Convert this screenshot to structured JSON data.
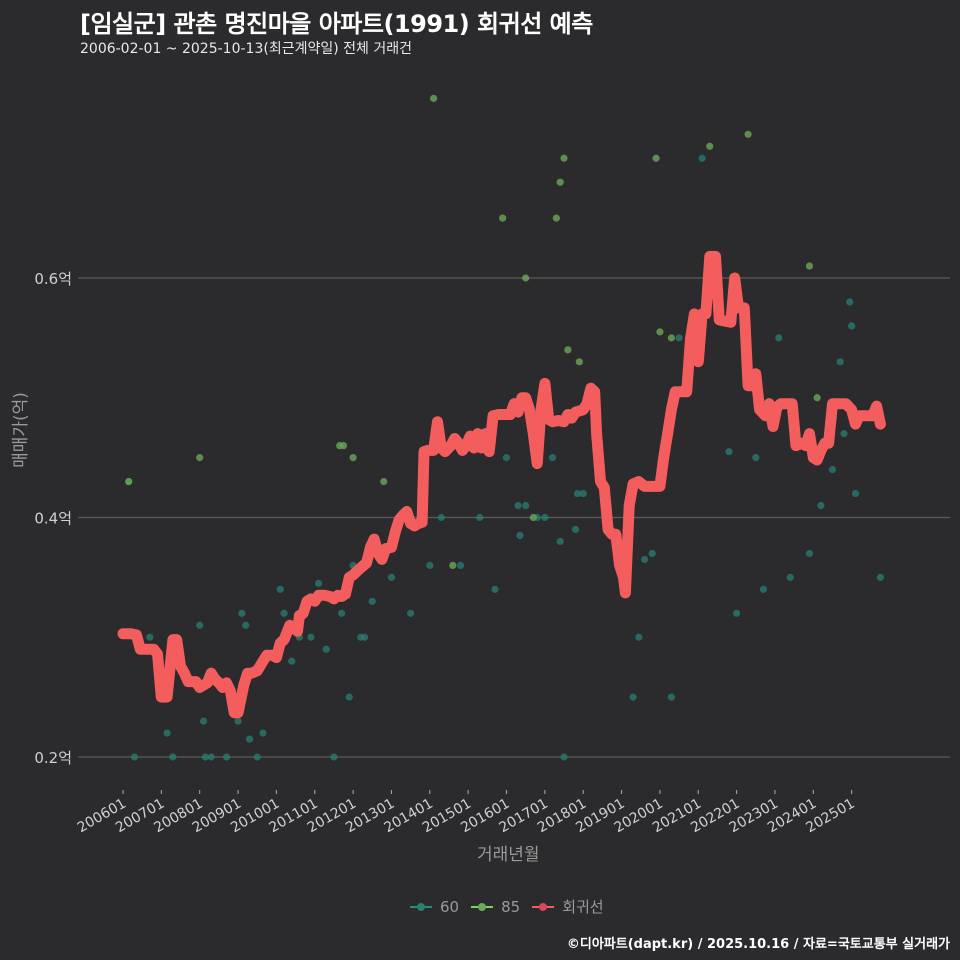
{
  "header": {
    "title": "[임실군] 관촌 명진마을 아파트(1991) 회귀선 예측",
    "subtitle": "2006-02-01 ~ 2025-10-13(최근계약일) 전체 거래건"
  },
  "axes": {
    "ylabel": "매매가(억)",
    "xlabel": "거래년월"
  },
  "legend": [
    {
      "label": "60",
      "color": "#2a8a7e"
    },
    {
      "label": "85",
      "color": "#7ccf6a"
    },
    {
      "label": "회귀선",
      "color": "#f45d5d"
    }
  ],
  "footer": "©디아파트(dapt.kr) / 2025.10.16 / 자료=국토교통부 실거래가",
  "colors": {
    "background": "#2b2a2c",
    "grid": "#5c5c5c",
    "regression": "#f45d5d",
    "size60": "#2a7f73",
    "size85": "#6aa85a"
  },
  "chart_data": {
    "type": "scatter",
    "title": "[임실군] 관촌 명진마을 아파트(1991) 회귀선 예측",
    "subtitle": "2006-02-01 ~ 2025-10-13(최근계약일) 전체 거래건",
    "xlabel": "거래년월",
    "ylabel": "매매가(억)",
    "x_tick_labels": [
      "200601",
      "200701",
      "200801",
      "200901",
      "201001",
      "201101",
      "201201",
      "201301",
      "201401",
      "201501",
      "201601",
      "201701",
      "201801",
      "201901",
      "202001",
      "202101",
      "202201",
      "202301",
      "202401",
      "202501"
    ],
    "y_tick_labels": [
      "0.2억",
      "0.4억",
      "0.6억"
    ],
    "y_ticks": [
      0.2,
      0.4,
      0.6
    ],
    "ylim": [
      0.17,
      0.77
    ],
    "xlim": [
      2005.9,
      2026.0
    ],
    "grid": true,
    "legend_position": "bottom",
    "series": [
      {
        "name": "60",
        "type": "scatter",
        "points": [
          [
            2006.15,
            0.43
          ],
          [
            2006.3,
            0.2
          ],
          [
            2006.7,
            0.3
          ],
          [
            2007.15,
            0.22
          ],
          [
            2007.3,
            0.2
          ],
          [
            2008.0,
            0.31
          ],
          [
            2008.1,
            0.23
          ],
          [
            2008.15,
            0.2
          ],
          [
            2008.3,
            0.2
          ],
          [
            2008.7,
            0.2
          ],
          [
            2009.0,
            0.23
          ],
          [
            2009.1,
            0.32
          ],
          [
            2009.2,
            0.31
          ],
          [
            2009.3,
            0.215
          ],
          [
            2009.5,
            0.2
          ],
          [
            2009.65,
            0.22
          ],
          [
            2010.1,
            0.34
          ],
          [
            2010.2,
            0.32
          ],
          [
            2010.4,
            0.28
          ],
          [
            2010.6,
            0.3
          ],
          [
            2010.9,
            0.3
          ],
          [
            2011.1,
            0.345
          ],
          [
            2011.3,
            0.29
          ],
          [
            2011.5,
            0.2
          ],
          [
            2011.7,
            0.32
          ],
          [
            2011.9,
            0.25
          ],
          [
            2012.0,
            0.36
          ],
          [
            2012.2,
            0.3
          ],
          [
            2012.3,
            0.3
          ],
          [
            2012.5,
            0.33
          ],
          [
            2012.8,
            0.37
          ],
          [
            2013.0,
            0.35
          ],
          [
            2013.3,
            0.4
          ],
          [
            2013.5,
            0.32
          ],
          [
            2014.0,
            0.36
          ],
          [
            2014.3,
            0.4
          ],
          [
            2014.8,
            0.36
          ],
          [
            2015.3,
            0.4
          ],
          [
            2015.7,
            0.34
          ],
          [
            2016.0,
            0.45
          ],
          [
            2016.3,
            0.41
          ],
          [
            2016.35,
            0.385
          ],
          [
            2016.5,
            0.41
          ],
          [
            2016.8,
            0.4
          ],
          [
            2017.0,
            0.4
          ],
          [
            2017.2,
            0.45
          ],
          [
            2017.4,
            0.38
          ],
          [
            2017.5,
            0.2
          ],
          [
            2017.8,
            0.39
          ],
          [
            2017.85,
            0.42
          ],
          [
            2018.0,
            0.42
          ],
          [
            2019.3,
            0.25
          ],
          [
            2019.45,
            0.3
          ],
          [
            2019.6,
            0.365
          ],
          [
            2019.8,
            0.37
          ],
          [
            2020.3,
            0.25
          ],
          [
            2020.5,
            0.55
          ],
          [
            2021.1,
            0.7
          ],
          [
            2021.8,
            0.455
          ],
          [
            2022.0,
            0.32
          ],
          [
            2022.2,
            0.55
          ],
          [
            2022.5,
            0.45
          ],
          [
            2022.7,
            0.34
          ],
          [
            2023.1,
            0.55
          ],
          [
            2023.4,
            0.35
          ],
          [
            2023.9,
            0.37
          ],
          [
            2024.2,
            0.41
          ],
          [
            2024.5,
            0.44
          ],
          [
            2024.7,
            0.53
          ],
          [
            2024.8,
            0.47
          ],
          [
            2024.95,
            0.58
          ],
          [
            2025.0,
            0.56
          ],
          [
            2025.1,
            0.42
          ],
          [
            2025.75,
            0.35
          ]
        ]
      },
      {
        "name": "85",
        "type": "scatter",
        "points": [
          [
            2006.15,
            0.43
          ],
          [
            2008.0,
            0.45
          ],
          [
            2011.65,
            0.46
          ],
          [
            2011.75,
            0.46
          ],
          [
            2012.0,
            0.45
          ],
          [
            2012.8,
            0.43
          ],
          [
            2014.1,
            0.75
          ],
          [
            2014.6,
            0.36
          ],
          [
            2015.9,
            0.65
          ],
          [
            2016.5,
            0.6
          ],
          [
            2016.7,
            0.4
          ],
          [
            2017.3,
            0.65
          ],
          [
            2017.4,
            0.68
          ],
          [
            2017.5,
            0.7
          ],
          [
            2017.6,
            0.54
          ],
          [
            2017.9,
            0.53
          ],
          [
            2019.9,
            0.7
          ],
          [
            2020.0,
            0.555
          ],
          [
            2020.3,
            0.55
          ],
          [
            2021.3,
            0.71
          ],
          [
            2022.3,
            0.72
          ],
          [
            2023.9,
            0.61
          ],
          [
            2024.1,
            0.5
          ]
        ]
      },
      {
        "name": "회귀선",
        "type": "line",
        "points": [
          [
            2006.0,
            0.303
          ],
          [
            2006.2,
            0.303
          ],
          [
            2006.35,
            0.302
          ],
          [
            2006.45,
            0.29
          ],
          [
            2006.6,
            0.29
          ],
          [
            2006.8,
            0.29
          ],
          [
            2006.9,
            0.286
          ],
          [
            2007.0,
            0.25
          ],
          [
            2007.15,
            0.25
          ],
          [
            2007.3,
            0.298
          ],
          [
            2007.4,
            0.298
          ],
          [
            2007.5,
            0.276
          ],
          [
            2007.6,
            0.27
          ],
          [
            2007.7,
            0.263
          ],
          [
            2007.9,
            0.263
          ],
          [
            2008.0,
            0.258
          ],
          [
            2008.1,
            0.26
          ],
          [
            2008.2,
            0.262
          ],
          [
            2008.3,
            0.27
          ],
          [
            2008.4,
            0.265
          ],
          [
            2008.5,
            0.262
          ],
          [
            2008.6,
            0.258
          ],
          [
            2008.7,
            0.262
          ],
          [
            2008.8,
            0.255
          ],
          [
            2008.9,
            0.237
          ],
          [
            2009.0,
            0.237
          ],
          [
            2009.15,
            0.26
          ],
          [
            2009.25,
            0.27
          ],
          [
            2009.35,
            0.27
          ],
          [
            2009.5,
            0.272
          ],
          [
            2009.65,
            0.28
          ],
          [
            2009.75,
            0.285
          ],
          [
            2009.9,
            0.285
          ],
          [
            2010.0,
            0.283
          ],
          [
            2010.1,
            0.295
          ],
          [
            2010.2,
            0.298
          ],
          [
            2010.35,
            0.31
          ],
          [
            2010.45,
            0.308
          ],
          [
            2010.55,
            0.305
          ],
          [
            2010.6,
            0.318
          ],
          [
            2010.7,
            0.32
          ],
          [
            2010.8,
            0.33
          ],
          [
            2010.9,
            0.332
          ],
          [
            2011.0,
            0.33
          ],
          [
            2011.1,
            0.335
          ],
          [
            2011.25,
            0.335
          ],
          [
            2011.4,
            0.334
          ],
          [
            2011.5,
            0.332
          ],
          [
            2011.6,
            0.335
          ],
          [
            2011.7,
            0.334
          ],
          [
            2011.8,
            0.336
          ],
          [
            2011.9,
            0.35
          ],
          [
            2012.0,
            0.352
          ],
          [
            2012.1,
            0.355
          ],
          [
            2012.2,
            0.358
          ],
          [
            2012.35,
            0.362
          ],
          [
            2012.45,
            0.375
          ],
          [
            2012.55,
            0.382
          ],
          [
            2012.65,
            0.37
          ],
          [
            2012.75,
            0.365
          ],
          [
            2012.85,
            0.374
          ],
          [
            2013.0,
            0.375
          ],
          [
            2013.1,
            0.388
          ],
          [
            2013.2,
            0.398
          ],
          [
            2013.3,
            0.402
          ],
          [
            2013.4,
            0.405
          ],
          [
            2013.5,
            0.395
          ],
          [
            2013.6,
            0.393
          ],
          [
            2013.7,
            0.395
          ],
          [
            2013.8,
            0.396
          ],
          [
            2013.85,
            0.455
          ],
          [
            2013.95,
            0.456
          ],
          [
            2014.1,
            0.456
          ],
          [
            2014.2,
            0.48
          ],
          [
            2014.3,
            0.458
          ],
          [
            2014.4,
            0.455
          ],
          [
            2014.55,
            0.46
          ],
          [
            2014.65,
            0.466
          ],
          [
            2014.75,
            0.462
          ],
          [
            2014.85,
            0.456
          ],
          [
            2014.95,
            0.46
          ],
          [
            2015.05,
            0.468
          ],
          [
            2015.15,
            0.458
          ],
          [
            2015.25,
            0.47
          ],
          [
            2015.35,
            0.458
          ],
          [
            2015.45,
            0.47
          ],
          [
            2015.55,
            0.455
          ],
          [
            2015.65,
            0.485
          ],
          [
            2015.8,
            0.486
          ],
          [
            2015.95,
            0.486
          ],
          [
            2016.1,
            0.486
          ],
          [
            2016.2,
            0.495
          ],
          [
            2016.3,
            0.488
          ],
          [
            2016.4,
            0.5
          ],
          [
            2016.5,
            0.5
          ],
          [
            2016.6,
            0.49
          ],
          [
            2016.7,
            0.47
          ],
          [
            2016.8,
            0.445
          ],
          [
            2016.9,
            0.49
          ],
          [
            2017.0,
            0.512
          ],
          [
            2017.1,
            0.482
          ],
          [
            2017.2,
            0.48
          ],
          [
            2017.35,
            0.481
          ],
          [
            2017.5,
            0.48
          ],
          [
            2017.6,
            0.486
          ],
          [
            2017.7,
            0.483
          ],
          [
            2017.8,
            0.488
          ],
          [
            2017.9,
            0.489
          ],
          [
            2018.0,
            0.49
          ],
          [
            2018.1,
            0.495
          ],
          [
            2018.2,
            0.508
          ],
          [
            2018.3,
            0.505
          ],
          [
            2018.35,
            0.47
          ],
          [
            2018.45,
            0.43
          ],
          [
            2018.55,
            0.425
          ],
          [
            2018.65,
            0.39
          ],
          [
            2018.75,
            0.386
          ],
          [
            2018.85,
            0.386
          ],
          [
            2018.95,
            0.36
          ],
          [
            2019.05,
            0.35
          ],
          [
            2019.1,
            0.337
          ],
          [
            2019.2,
            0.41
          ],
          [
            2019.3,
            0.428
          ],
          [
            2019.45,
            0.43
          ],
          [
            2019.6,
            0.426
          ],
          [
            2019.8,
            0.426
          ],
          [
            2020.0,
            0.426
          ],
          [
            2020.1,
            0.45
          ],
          [
            2020.2,
            0.47
          ],
          [
            2020.3,
            0.49
          ],
          [
            2020.4,
            0.505
          ],
          [
            2020.55,
            0.505
          ],
          [
            2020.7,
            0.505
          ],
          [
            2020.8,
            0.55
          ],
          [
            2020.9,
            0.57
          ],
          [
            2021.0,
            0.53
          ],
          [
            2021.1,
            0.57
          ],
          [
            2021.2,
            0.57
          ],
          [
            2021.3,
            0.618
          ],
          [
            2021.45,
            0.618
          ],
          [
            2021.55,
            0.565
          ],
          [
            2021.7,
            0.564
          ],
          [
            2021.85,
            0.563
          ],
          [
            2021.95,
            0.6
          ],
          [
            2022.05,
            0.575
          ],
          [
            2022.2,
            0.575
          ],
          [
            2022.3,
            0.51
          ],
          [
            2022.4,
            0.51
          ],
          [
            2022.5,
            0.52
          ],
          [
            2022.6,
            0.49
          ],
          [
            2022.75,
            0.485
          ],
          [
            2022.85,
            0.495
          ],
          [
            2022.95,
            0.476
          ],
          [
            2023.05,
            0.492
          ],
          [
            2023.15,
            0.495
          ],
          [
            2023.3,
            0.495
          ],
          [
            2023.45,
            0.495
          ],
          [
            2023.55,
            0.46
          ],
          [
            2023.7,
            0.462
          ],
          [
            2023.8,
            0.46
          ],
          [
            2023.9,
            0.47
          ],
          [
            2024.0,
            0.45
          ],
          [
            2024.1,
            0.448
          ],
          [
            2024.2,
            0.456
          ],
          [
            2024.3,
            0.462
          ],
          [
            2024.4,
            0.462
          ],
          [
            2024.5,
            0.495
          ],
          [
            2024.7,
            0.495
          ],
          [
            2024.85,
            0.495
          ],
          [
            2025.0,
            0.49
          ],
          [
            2025.1,
            0.478
          ],
          [
            2025.2,
            0.485
          ],
          [
            2025.3,
            0.485
          ],
          [
            2025.5,
            0.485
          ],
          [
            2025.55,
            0.485
          ],
          [
            2025.65,
            0.493
          ],
          [
            2025.75,
            0.478
          ]
        ]
      }
    ]
  }
}
